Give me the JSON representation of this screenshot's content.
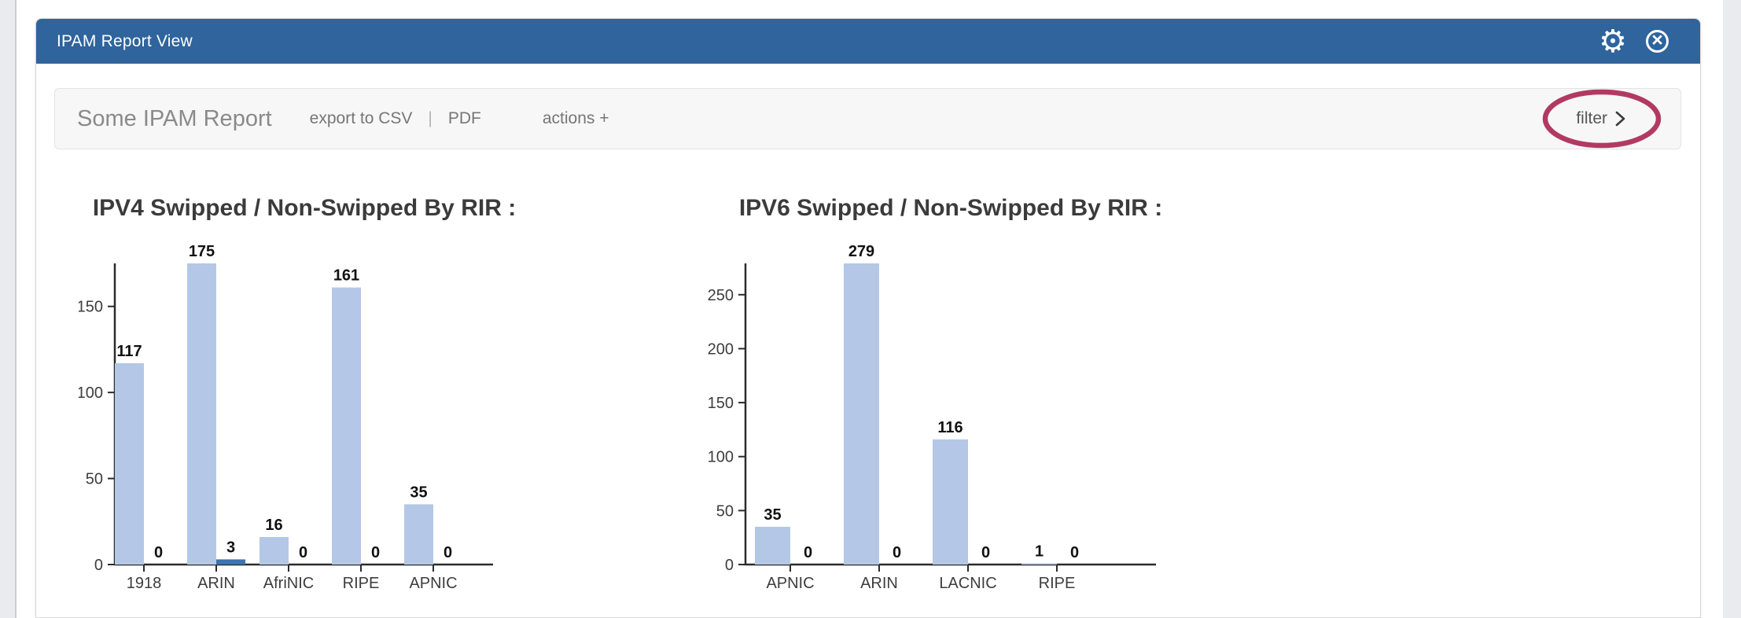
{
  "window": {
    "title": "IPAM Report View"
  },
  "icons": {
    "gear": "⚙",
    "close": "×"
  },
  "header": {
    "bg": "#2f649c"
  },
  "toolbar": {
    "report_title": "Some IPAM Report",
    "export_csv_label": "export to CSV",
    "separator": "|",
    "pdf_label": "PDF",
    "actions_label": "actions +",
    "filter_label": "filter"
  },
  "annotation": {
    "color": "#b23a62"
  },
  "chart_data": [
    {
      "type": "bar",
      "title": "IPV4 Swipped / Non-Swipped By RIR :",
      "categories": [
        "1918",
        "ARIN",
        "AfriNIC",
        "RIPE",
        "APNIC"
      ],
      "series": [
        {
          "name": "Swipped",
          "values": [
            117,
            175,
            16,
            161,
            35
          ]
        },
        {
          "name": "Non-Swipped",
          "values": [
            0,
            3,
            0,
            0,
            0
          ]
        }
      ],
      "colors": [
        "#b4c7e6",
        "#3b74af"
      ],
      "yticks": [
        0,
        50,
        100,
        150
      ],
      "ylim": [
        0,
        175
      ],
      "grid": false,
      "legend": "none",
      "value_labels": true
    },
    {
      "type": "bar",
      "title": "IPV6 Swipped / Non-Swipped By RIR :",
      "categories": [
        "APNIC",
        "ARIN",
        "LACNIC",
        "RIPE"
      ],
      "series": [
        {
          "name": "Swipped",
          "values": [
            35,
            279,
            116,
            1
          ]
        },
        {
          "name": "Non-Swipped",
          "values": [
            0,
            0,
            0,
            0
          ]
        }
      ],
      "colors": [
        "#b4c7e6",
        "#3b74af"
      ],
      "yticks": [
        0,
        50,
        100,
        150,
        200,
        250
      ],
      "ylim": [
        0,
        279
      ],
      "grid": false,
      "legend": "none",
      "value_labels": true
    }
  ]
}
